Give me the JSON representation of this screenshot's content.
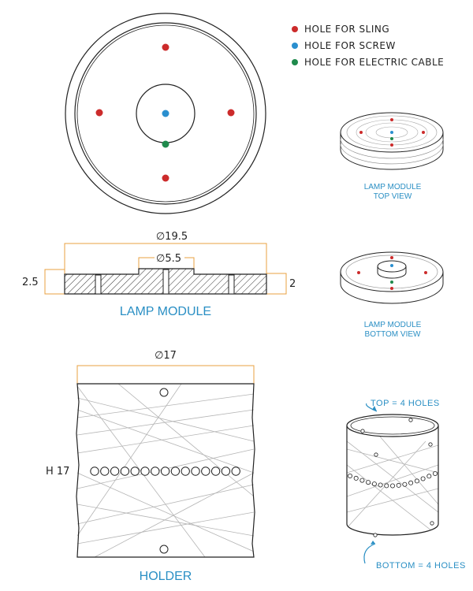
{
  "legend": {
    "items": [
      {
        "label": "HOLE FOR SLING",
        "color": "#cc2b2b"
      },
      {
        "label": "HOLE FOR SCREW",
        "color": "#2a8fcf"
      },
      {
        "label": "HOLE FOR ELECTRIC CABLE",
        "color": "#1f8a4c"
      }
    ]
  },
  "views": {
    "lamp_top": [
      "LAMP MODULE",
      "TOP VIEW"
    ],
    "lamp_bottom": [
      "LAMP MODULE",
      "BOTTOM VIEW"
    ]
  },
  "section": {
    "outer_diameter": "∅19.5",
    "inner_diameter": "∅5.5",
    "left_height": "2.5",
    "right_height": "2",
    "title": "LAMP MODULE"
  },
  "holder": {
    "diameter": "∅17",
    "height": "H 17",
    "title": "HOLDER",
    "top_note": "TOP = 4 HOLES",
    "bottom_note": "BOTTOM = 4 HOLES",
    "middle_hole_count": 15
  },
  "colors": {
    "accent": "#2a8fc4",
    "dimension": "#e8a040",
    "sling": "#cc2b2b",
    "screw": "#2a8fcf",
    "cable": "#1f8a4c"
  }
}
